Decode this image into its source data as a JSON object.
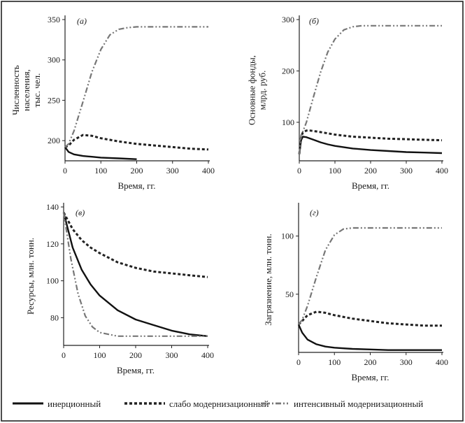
{
  "styles": {
    "inertial": {
      "color": "#111111",
      "width": 2.4,
      "dash": ""
    },
    "weak": {
      "color": "#222222",
      "width": 3.0,
      "dash": "4 3"
    },
    "intensive": {
      "color": "#777777",
      "width": 2.2,
      "dash": "8 3 2 3 2 3"
    }
  },
  "legend": [
    {
      "key": "inertial",
      "label": "инерционный"
    },
    {
      "key": "weak",
      "label": "слабо модернизационный"
    },
    {
      "key": "intensive",
      "label": "интенсивный модернизационный"
    }
  ],
  "chart_data": [
    {
      "type": "line",
      "panel_label": "(а)",
      "xlabel": "Время, гг.",
      "ylabel": [
        "Численность",
        "населения,",
        "тыс. чел."
      ],
      "xlim": [
        0,
        400
      ],
      "ylim": [
        175,
        350
      ],
      "xticks": [
        0,
        100,
        200,
        300,
        400
      ],
      "yticks": [
        200,
        250,
        300,
        350
      ],
      "series": [
        {
          "key": "inertial",
          "name": "инерционный",
          "x": [
            0,
            10,
            25,
            50,
            75,
            100,
            150,
            200
          ],
          "y": [
            192,
            186,
            183,
            181,
            180,
            179,
            178,
            177
          ]
        },
        {
          "key": "weak",
          "name": "слабо модернизационный",
          "x": [
            0,
            10,
            25,
            50,
            75,
            100,
            150,
            200,
            250,
            300,
            350,
            400
          ],
          "y": [
            192,
            194,
            201,
            207,
            206,
            203,
            199,
            196,
            194,
            192,
            190,
            189
          ]
        },
        {
          "key": "intensive",
          "name": "интенсивный модернизационный",
          "x": [
            0,
            10,
            25,
            50,
            75,
            100,
            125,
            150,
            175,
            200,
            250,
            300,
            350,
            400
          ],
          "y": [
            192,
            196,
            212,
            248,
            285,
            313,
            331,
            338,
            340,
            341,
            341,
            341,
            341,
            341
          ]
        }
      ]
    },
    {
      "type": "line",
      "panel_label": "(б)",
      "xlabel": "Время, гг.",
      "ylabel": [
        "Основные фонды,",
        "млрд. руб."
      ],
      "xlim": [
        0,
        400
      ],
      "ylim": [
        25,
        300
      ],
      "xticks": [
        0,
        100,
        200,
        300,
        400
      ],
      "yticks": [
        100,
        200,
        300
      ],
      "series": [
        {
          "key": "inertial",
          "name": "инерционный",
          "x": [
            0,
            5,
            10,
            20,
            40,
            60,
            80,
            100,
            150,
            200,
            250,
            300,
            350,
            400
          ],
          "y": [
            38,
            65,
            72,
            71,
            66,
            61,
            57,
            54,
            49,
            46,
            44,
            42,
            41,
            40
          ]
        },
        {
          "key": "weak",
          "name": "слабо модернизационный",
          "x": [
            0,
            5,
            10,
            20,
            30,
            50,
            75,
            100,
            150,
            200,
            250,
            300,
            350,
            400
          ],
          "y": [
            38,
            72,
            80,
            84,
            84,
            82,
            79,
            76,
            72,
            70,
            68,
            67,
            66,
            65
          ]
        },
        {
          "key": "intensive",
          "name": "интенсивный модернизационный",
          "x": [
            0,
            5,
            10,
            20,
            40,
            60,
            80,
            100,
            125,
            150,
            175,
            200,
            300,
            400
          ],
          "y": [
            38,
            75,
            82,
            100,
            150,
            198,
            237,
            262,
            280,
            286,
            288,
            288,
            288,
            288
          ]
        }
      ]
    },
    {
      "type": "line",
      "panel_label": "(в)",
      "xlabel": "Время, гг.",
      "ylabel": [
        "Ресурсы, млн. тонн."
      ],
      "xlim": [
        0,
        400
      ],
      "ylim": [
        65,
        140
      ],
      "xticks": [
        0,
        100,
        200,
        300,
        400
      ],
      "yticks": [
        80,
        100,
        120,
        140
      ],
      "series": [
        {
          "key": "inertial",
          "name": "инерционный",
          "x": [
            0,
            25,
            50,
            75,
            100,
            150,
            200,
            250,
            300,
            350,
            400
          ],
          "y": [
            137,
            118,
            106,
            98,
            92,
            84,
            79,
            76,
            73,
            71,
            70
          ]
        },
        {
          "key": "weak",
          "name": "слабо модернизационный",
          "x": [
            0,
            25,
            50,
            75,
            100,
            150,
            200,
            250,
            300,
            350,
            400
          ],
          "y": [
            137,
            128,
            122,
            118,
            115,
            110,
            107,
            105,
            104,
            103,
            102
          ]
        },
        {
          "key": "intensive",
          "name": "интенсивный модернизационный",
          "x": [
            0,
            20,
            40,
            60,
            80,
            100,
            125,
            150,
            200,
            250,
            300,
            350,
            400
          ],
          "y": [
            137,
            112,
            93,
            81,
            75,
            72,
            71,
            70,
            70,
            70,
            70,
            70,
            70
          ]
        }
      ]
    },
    {
      "type": "line",
      "panel_label": "(г)",
      "xlabel": "Время, гг.",
      "ylabel": [
        "Загрязнение, млн. тонн."
      ],
      "xlim": [
        0,
        400
      ],
      "ylim": [
        0,
        125
      ],
      "xticks": [
        0,
        100,
        200,
        300,
        400
      ],
      "yticks": [
        50,
        100
      ],
      "series": [
        {
          "key": "inertial",
          "name": "инерционный",
          "x": [
            0,
            10,
            25,
            50,
            75,
            100,
            150,
            200,
            250,
            300,
            350,
            400
          ],
          "y": [
            24,
            17,
            11,
            7,
            5,
            4,
            3,
            2.5,
            2,
            2,
            2,
            2
          ]
        },
        {
          "key": "weak",
          "name": "слабо модернизационный",
          "x": [
            0,
            10,
            25,
            50,
            75,
            100,
            150,
            200,
            250,
            300,
            350,
            400
          ],
          "y": [
            24,
            27,
            32,
            35,
            34,
            32,
            29,
            27,
            25,
            24,
            23,
            23
          ]
        },
        {
          "key": "intensive",
          "name": "интенсивный модернизационный",
          "x": [
            0,
            10,
            25,
            50,
            75,
            100,
            125,
            150,
            175,
            200,
            300,
            400
          ],
          "y": [
            24,
            28,
            40,
            65,
            88,
            101,
            106,
            107,
            107,
            107,
            107,
            107
          ]
        }
      ]
    }
  ]
}
